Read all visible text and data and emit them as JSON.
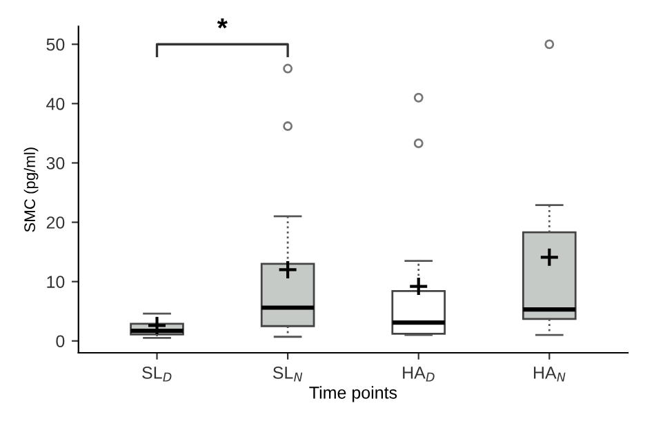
{
  "chart_data": {
    "type": "box",
    "xlabel": "Time points",
    "ylabel": "SMC (pg/ml)",
    "categories": [
      "SL$_{D}$",
      "SL$_{N}$",
      "HA$_{D}$",
      "HA$_{N}$"
    ],
    "colors": [
      "#c5cac7",
      "#c5cac7",
      "#ffffff",
      "#c5cac7"
    ],
    "boxes": [
      {
        "low": 0.5,
        "q1": 1.1,
        "median": 1.7,
        "q3": 2.9,
        "high": 4.6,
        "mean": 2.6
      },
      {
        "low": 0.7,
        "q1": 2.5,
        "median": 5.6,
        "q3": 13.0,
        "high": 21.0,
        "mean": 12.0,
        "outliers": [
          36.2,
          45.9
        ]
      },
      {
        "low": 1.0,
        "q1": 1.2,
        "median": 3.1,
        "q3": 8.4,
        "high": 13.5,
        "mean": 9.2,
        "outliers": [
          33.3,
          41.0
        ]
      },
      {
        "low": 1.0,
        "q1": 3.7,
        "median": 5.3,
        "q3": 18.3,
        "high": 22.9,
        "mean": 14.1,
        "outliers": [
          50.0
        ]
      }
    ],
    "ylim": [
      -2,
      53
    ],
    "yticks": [
      0,
      10,
      20,
      30,
      40,
      50
    ],
    "grid": false,
    "annotations": [
      "*"
    ]
  }
}
